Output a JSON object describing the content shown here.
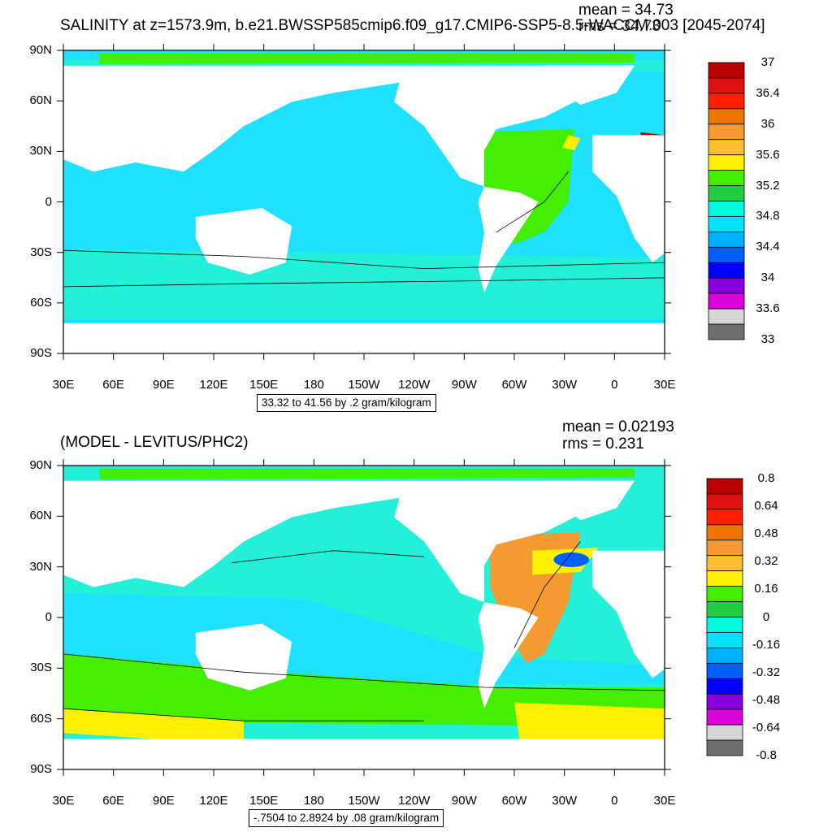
{
  "panels": [
    {
      "title": "SALINITY at z=1573.9m, b.e21.BWSSP585cmip6.f09_g17.CMIP6-SSP5-8.5-WACCM.003 [2045-2074]",
      "mean_text": "mean = 34.73",
      "rms_text": "rms = 34.73",
      "range_text": "33.32 to 41.56 by .2 gram/kilogram",
      "lat_labels": [
        "90N",
        "60N",
        "30N",
        "0",
        "30S",
        "60S",
        "90S"
      ],
      "lon_labels": [
        "30E",
        "60E",
        "90E",
        "120E",
        "150E",
        "180",
        "150W",
        "120W",
        "90W",
        "60W",
        "30W",
        "0",
        "30E"
      ],
      "colorbar": {
        "colors": [
          "#bb0000",
          "#dd1111",
          "#ff2200",
          "#ee7700",
          "#f59a30",
          "#fbbe30",
          "#fff000",
          "#44ee00",
          "#22cc44",
          "#00fadd",
          "#0ae0ff",
          "#00b0ff",
          "#0060ff",
          "#0000ff",
          "#8800dd",
          "#dd00dd",
          "#d6d6d6",
          "#707070"
        ],
        "labels": [
          "37",
          "36.4",
          "36",
          "35.6",
          "35.2",
          "34.8",
          "34.4",
          "34",
          "33.6",
          "33"
        ]
      }
    },
    {
      "title": "(MODEL - LEVITUS/PHC2)",
      "mean_text": "mean = 0.02193",
      "rms_text": "rms = 0.231",
      "range_text": "-.7504 to 2.8924 by .08 gram/kilogram",
      "lat_labels": [
        "90N",
        "60N",
        "30N",
        "0",
        "30S",
        "60S",
        "90S"
      ],
      "lon_labels": [
        "30E",
        "60E",
        "90E",
        "120E",
        "150E",
        "180",
        "150W",
        "120W",
        "90W",
        "60W",
        "30W",
        "0",
        "30E"
      ],
      "colorbar": {
        "colors": [
          "#bb0000",
          "#dd1111",
          "#ff2200",
          "#ee7700",
          "#f59a30",
          "#fbbe30",
          "#fff000",
          "#44ee00",
          "#22cc44",
          "#00fadd",
          "#0ae0ff",
          "#00b0ff",
          "#0060ff",
          "#0000ff",
          "#8800dd",
          "#dd00dd",
          "#d6d6d6",
          "#707070"
        ],
        "labels": [
          "0.8",
          "0.64",
          "0.48",
          "0.32",
          "0.16",
          "0",
          "-0.16",
          "-0.32",
          "-0.48",
          "-0.64",
          "-0.8"
        ]
      }
    }
  ],
  "palette": {
    "salinity_ocean": "#1ee0ff",
    "salinity_southern": "#22f0d8",
    "salinity_atlantic": "#44ee00",
    "diff_pacific": "#22f0d8",
    "diff_cyan": "#1ee0ff",
    "diff_green": "#44ee00",
    "diff_yellow": "#fff000",
    "diff_orange": "#f59a30",
    "land": "#ffffff"
  }
}
